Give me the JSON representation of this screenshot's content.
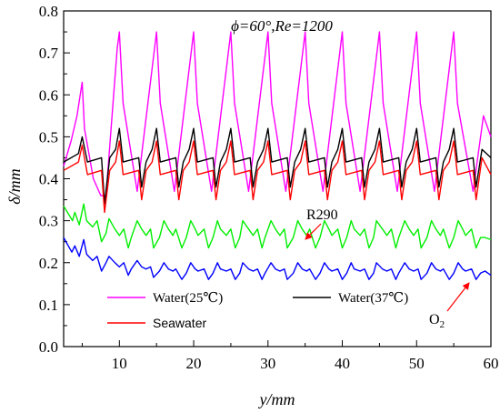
{
  "chart_data": {
    "type": "line",
    "title": "ϕ=60°,Re=1200",
    "xlabel": "y/mm",
    "ylabel": "δ/mm",
    "xlim": [
      2.5,
      60
    ],
    "ylim": [
      0,
      0.8
    ],
    "xticks": [
      "10",
      "20",
      "30",
      "40",
      "50",
      "60"
    ],
    "xtick_values": [
      10,
      20,
      30,
      40,
      50,
      60
    ],
    "yticks": [
      "0.0",
      "0.1",
      "0.2",
      "0.3",
      "0.4",
      "0.5",
      "0.6",
      "0.7",
      "0.8"
    ],
    "ytick_values": [
      0,
      0.1,
      0.2,
      0.3,
      0.4,
      0.5,
      0.6,
      0.7,
      0.8
    ],
    "minor_xtick_step": 5,
    "minor_ytick_step": 0.05,
    "grid": false,
    "legend_position": "bottom-left",
    "series": [
      {
        "name": "Water(25℃)",
        "color": "#ff00ff",
        "x": [
          2.5,
          3.5,
          4.3,
          5.0,
          5.3,
          6.5,
          7.5,
          8.2,
          8.8,
          9.7,
          10.0,
          10.5,
          12.4,
          15.0,
          15.5,
          17.4,
          20.0,
          20.5,
          22.4,
          25.0,
          25.5,
          27.4,
          30.0,
          30.5,
          32.4,
          35.0,
          35.5,
          37.4,
          40.0,
          40.5,
          42.4,
          45.0,
          45.5,
          47.4,
          50.0,
          50.5,
          52.4,
          55.0,
          55.5,
          57.6,
          59.0,
          60.0
        ],
        "y": [
          0.43,
          0.49,
          0.55,
          0.63,
          0.52,
          0.4,
          0.36,
          0.36,
          0.5,
          0.71,
          0.75,
          0.58,
          0.37,
          0.75,
          0.58,
          0.37,
          0.75,
          0.58,
          0.37,
          0.75,
          0.58,
          0.37,
          0.75,
          0.58,
          0.37,
          0.75,
          0.58,
          0.37,
          0.75,
          0.58,
          0.37,
          0.75,
          0.58,
          0.37,
          0.75,
          0.58,
          0.37,
          0.75,
          0.58,
          0.37,
          0.55,
          0.5
        ]
      },
      {
        "name": "Water(37℃)",
        "color": "#000000",
        "x": [
          2.5,
          4.5,
          5.0,
          5.7,
          7.6,
          8.0,
          8.7,
          9.5,
          10.0,
          10.5,
          12.6,
          13.0,
          13.6,
          14.4,
          15.0,
          15.5,
          17.6,
          18.0,
          18.6,
          19.4,
          20.0,
          20.5,
          22.6,
          23.0,
          23.6,
          24.4,
          25.0,
          25.5,
          27.6,
          28.0,
          28.6,
          29.4,
          30.0,
          30.5,
          32.6,
          33.0,
          33.6,
          34.4,
          35.0,
          35.5,
          37.6,
          38.0,
          38.6,
          39.4,
          40.0,
          40.5,
          42.6,
          43.0,
          43.6,
          44.4,
          45.0,
          45.5,
          47.6,
          48.0,
          48.6,
          49.4,
          50.0,
          50.5,
          52.6,
          53.0,
          53.6,
          54.4,
          55.0,
          55.5,
          57.6,
          58.0,
          58.8,
          60.0
        ],
        "y": [
          0.44,
          0.46,
          0.5,
          0.44,
          0.45,
          0.34,
          0.45,
          0.47,
          0.52,
          0.44,
          0.45,
          0.38,
          0.44,
          0.47,
          0.52,
          0.44,
          0.45,
          0.38,
          0.44,
          0.47,
          0.52,
          0.44,
          0.45,
          0.38,
          0.44,
          0.47,
          0.52,
          0.44,
          0.45,
          0.38,
          0.44,
          0.47,
          0.52,
          0.44,
          0.45,
          0.38,
          0.44,
          0.47,
          0.52,
          0.44,
          0.45,
          0.38,
          0.44,
          0.47,
          0.52,
          0.44,
          0.45,
          0.38,
          0.44,
          0.47,
          0.52,
          0.44,
          0.45,
          0.38,
          0.44,
          0.47,
          0.52,
          0.44,
          0.45,
          0.38,
          0.44,
          0.47,
          0.52,
          0.44,
          0.45,
          0.38,
          0.47,
          0.45
        ]
      },
      {
        "name": "Seawater",
        "color": "#ff0000",
        "x": [
          2.5,
          4.5,
          5.0,
          5.7,
          7.6,
          8.0,
          8.7,
          9.5,
          10.0,
          10.5,
          12.6,
          13.0,
          13.6,
          14.4,
          15.0,
          15.5,
          17.6,
          18.0,
          18.6,
          19.4,
          20.0,
          20.5,
          22.6,
          23.0,
          23.6,
          24.4,
          25.0,
          25.5,
          27.6,
          28.0,
          28.6,
          29.4,
          30.0,
          30.5,
          32.6,
          33.0,
          33.6,
          34.4,
          35.0,
          35.5,
          37.6,
          38.0,
          38.6,
          39.4,
          40.0,
          40.5,
          42.6,
          43.0,
          43.6,
          44.4,
          45.0,
          45.5,
          47.6,
          48.0,
          48.6,
          49.4,
          50.0,
          50.5,
          52.6,
          53.0,
          53.6,
          54.4,
          55.0,
          55.5,
          57.6,
          58.0,
          58.8,
          60.0
        ],
        "y": [
          0.42,
          0.44,
          0.48,
          0.41,
          0.42,
          0.32,
          0.42,
          0.44,
          0.49,
          0.41,
          0.42,
          0.35,
          0.42,
          0.44,
          0.49,
          0.41,
          0.42,
          0.35,
          0.42,
          0.44,
          0.49,
          0.41,
          0.42,
          0.35,
          0.42,
          0.44,
          0.49,
          0.41,
          0.42,
          0.35,
          0.42,
          0.44,
          0.49,
          0.41,
          0.42,
          0.35,
          0.42,
          0.44,
          0.49,
          0.41,
          0.42,
          0.35,
          0.42,
          0.44,
          0.49,
          0.41,
          0.42,
          0.35,
          0.42,
          0.44,
          0.49,
          0.41,
          0.42,
          0.35,
          0.42,
          0.44,
          0.49,
          0.41,
          0.42,
          0.35,
          0.42,
          0.44,
          0.49,
          0.41,
          0.42,
          0.35,
          0.45,
          0.41
        ]
      },
      {
        "name": "R290",
        "color": "#00ee00",
        "x": [
          2.5,
          3.7,
          4.0,
          4.6,
          5.2,
          5.6,
          6.4,
          7.0,
          7.6,
          8.2,
          8.6,
          9.4,
          10.0,
          10.6,
          11.2,
          11.6,
          12.4,
          13.0,
          13.6,
          14.2,
          14.6,
          15.4,
          16.0,
          16.6,
          17.2,
          17.6,
          18.4,
          19.0,
          19.6,
          20.2,
          20.6,
          21.4,
          22.0,
          22.6,
          23.2,
          23.6,
          24.4,
          25.0,
          25.6,
          26.2,
          26.6,
          27.4,
          28.0,
          28.6,
          29.2,
          29.6,
          30.4,
          31.0,
          31.6,
          32.2,
          32.6,
          33.4,
          34.0,
          34.6,
          35.2,
          35.6,
          36.4,
          37.0,
          37.6,
          38.2,
          38.6,
          39.4,
          40.0,
          40.6,
          41.2,
          41.6,
          42.4,
          43.0,
          43.6,
          44.2,
          44.6,
          45.4,
          46.0,
          46.6,
          47.2,
          47.6,
          48.4,
          49.0,
          49.6,
          50.2,
          50.6,
          51.4,
          52.0,
          52.6,
          53.2,
          53.6,
          54.4,
          55.0,
          55.6,
          56.2,
          56.6,
          57.4,
          58.0,
          58.6,
          59.2,
          60.0
        ],
        "y": [
          0.335,
          0.3,
          0.32,
          0.29,
          0.34,
          0.3,
          0.285,
          0.3,
          0.25,
          0.27,
          0.305,
          0.28,
          0.265,
          0.28,
          0.235,
          0.26,
          0.3,
          0.28,
          0.265,
          0.28,
          0.235,
          0.26,
          0.3,
          0.28,
          0.265,
          0.28,
          0.235,
          0.26,
          0.3,
          0.28,
          0.265,
          0.28,
          0.235,
          0.26,
          0.3,
          0.28,
          0.265,
          0.28,
          0.235,
          0.26,
          0.3,
          0.28,
          0.265,
          0.28,
          0.235,
          0.26,
          0.3,
          0.28,
          0.265,
          0.28,
          0.235,
          0.26,
          0.3,
          0.28,
          0.265,
          0.28,
          0.235,
          0.26,
          0.3,
          0.28,
          0.265,
          0.28,
          0.235,
          0.26,
          0.3,
          0.28,
          0.265,
          0.28,
          0.235,
          0.26,
          0.3,
          0.28,
          0.265,
          0.28,
          0.235,
          0.26,
          0.3,
          0.28,
          0.265,
          0.28,
          0.235,
          0.26,
          0.3,
          0.28,
          0.265,
          0.28,
          0.235,
          0.26,
          0.3,
          0.28,
          0.265,
          0.28,
          0.235,
          0.26,
          0.26,
          0.255
        ]
      },
      {
        "name": "O2",
        "color": "#0000ff",
        "x": [
          2.5,
          3.6,
          4.0,
          4.6,
          5.2,
          5.6,
          6.4,
          7.0,
          7.6,
          8.2,
          8.6,
          9.4,
          10.0,
          10.6,
          11.2,
          11.6,
          12.4,
          13.0,
          13.6,
          14.2,
          14.6,
          15.4,
          16.0,
          16.6,
          17.2,
          17.6,
          18.4,
          19.0,
          19.6,
          20.2,
          20.6,
          21.4,
          22.0,
          22.6,
          23.2,
          23.6,
          24.4,
          25.0,
          25.6,
          26.2,
          26.6,
          27.4,
          28.0,
          28.6,
          29.2,
          29.6,
          30.4,
          31.0,
          31.6,
          32.2,
          32.6,
          33.4,
          34.0,
          34.6,
          35.2,
          35.6,
          36.4,
          37.0,
          37.6,
          38.2,
          38.6,
          39.4,
          40.0,
          40.6,
          41.2,
          41.6,
          42.4,
          43.0,
          43.6,
          44.2,
          44.6,
          45.4,
          46.0,
          46.6,
          47.2,
          47.6,
          48.4,
          49.0,
          49.6,
          50.2,
          50.6,
          51.4,
          52.0,
          52.6,
          53.2,
          53.6,
          54.4,
          55.0,
          55.6,
          56.2,
          56.6,
          57.4,
          58.0,
          58.6,
          59.2,
          60.0
        ],
        "y": [
          0.26,
          0.225,
          0.24,
          0.215,
          0.255,
          0.22,
          0.205,
          0.215,
          0.18,
          0.2,
          0.215,
          0.2,
          0.19,
          0.2,
          0.17,
          0.185,
          0.205,
          0.19,
          0.185,
          0.19,
          0.165,
          0.18,
          0.2,
          0.185,
          0.18,
          0.185,
          0.16,
          0.175,
          0.2,
          0.185,
          0.18,
          0.185,
          0.16,
          0.175,
          0.2,
          0.185,
          0.18,
          0.185,
          0.16,
          0.175,
          0.2,
          0.185,
          0.18,
          0.185,
          0.16,
          0.175,
          0.2,
          0.185,
          0.18,
          0.185,
          0.16,
          0.175,
          0.2,
          0.185,
          0.18,
          0.185,
          0.16,
          0.175,
          0.2,
          0.185,
          0.18,
          0.185,
          0.16,
          0.175,
          0.2,
          0.185,
          0.18,
          0.185,
          0.16,
          0.175,
          0.2,
          0.185,
          0.18,
          0.185,
          0.16,
          0.175,
          0.2,
          0.185,
          0.18,
          0.185,
          0.16,
          0.175,
          0.2,
          0.185,
          0.18,
          0.185,
          0.16,
          0.175,
          0.2,
          0.185,
          0.18,
          0.185,
          0.16,
          0.175,
          0.18,
          0.17
        ]
      }
    ],
    "annotations": [
      {
        "text": "R290",
        "target_series": "R290",
        "point_to": [
          35.5,
          0.265
        ]
      },
      {
        "text": "O2",
        "target_series": "O2",
        "point_to": [
          58.3,
          0.185
        ]
      }
    ]
  }
}
